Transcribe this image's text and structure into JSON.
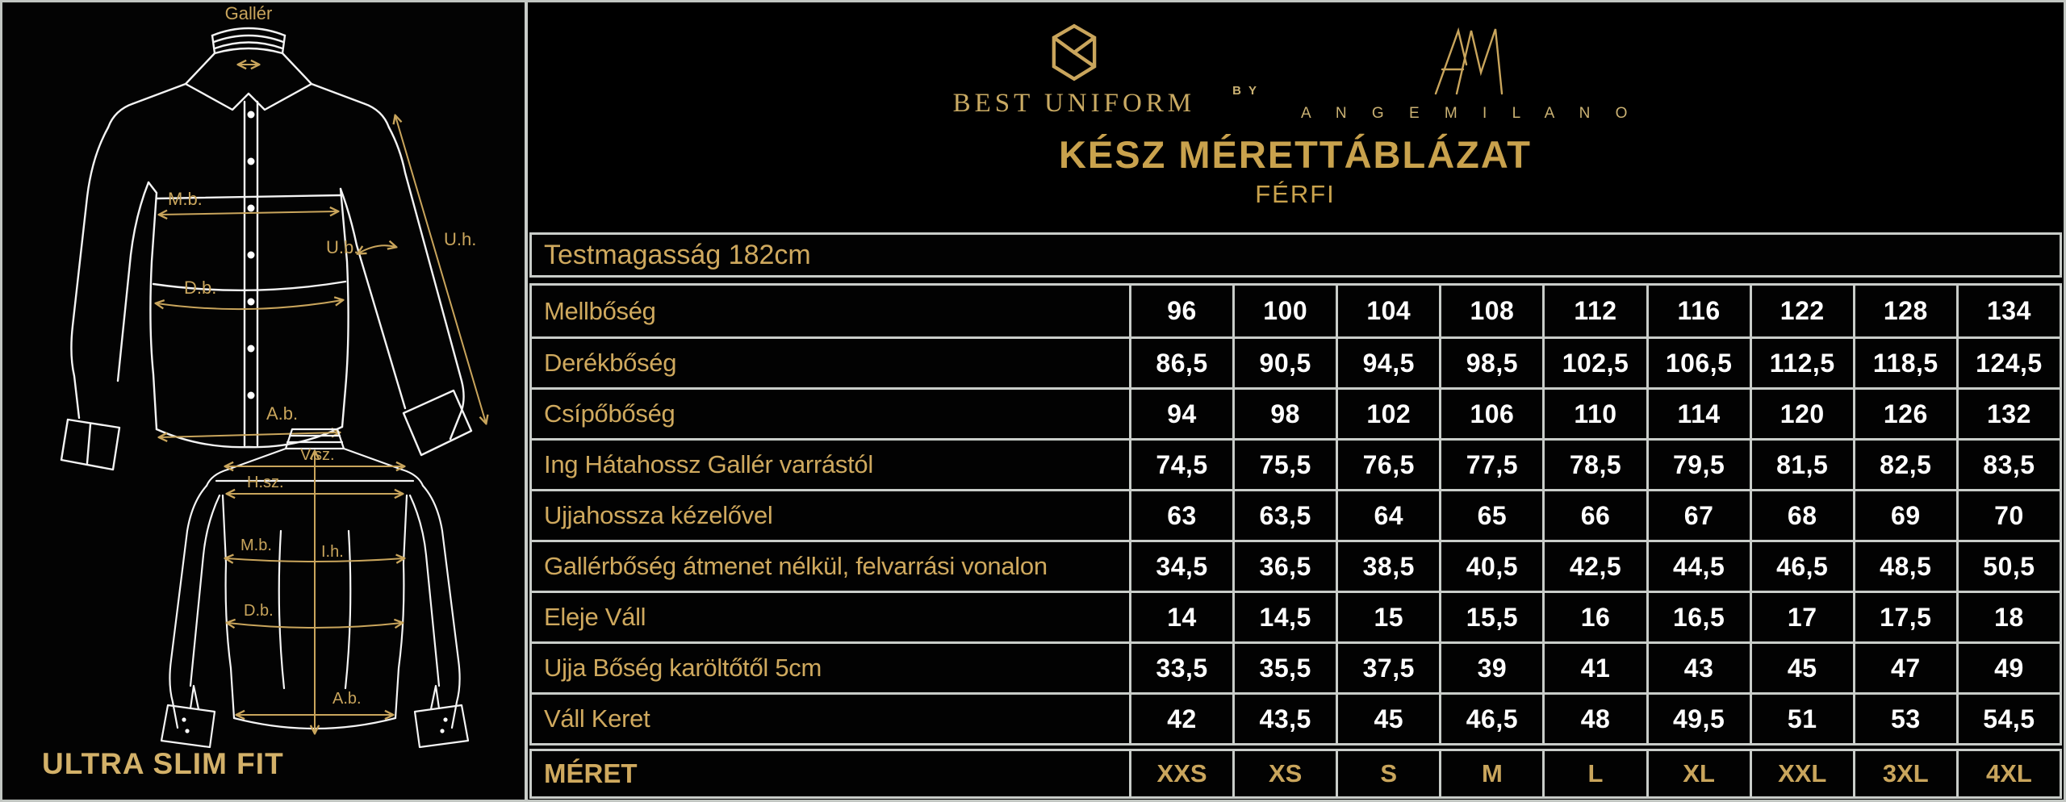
{
  "brand": {
    "best_uniform": "BEST UNIFORM",
    "by": "BY",
    "ange_milano": "A N G E   M I L A N O"
  },
  "header": {
    "title": "KÉSZ MÉRETTÁBLÁZAT",
    "subtitle": "FÉRFI"
  },
  "left_panel": {
    "fit_label": "ULTRA SLIM FIT",
    "front_diagram": {
      "collar": "Gallér",
      "chest": "M.b.",
      "waist": "D.b.",
      "hem": "A.b.",
      "sleeve_width": "U.b.",
      "sleeve_length": "U.h."
    },
    "back_diagram": {
      "shoulder_width": "V.sz.",
      "back_width": "H.sz.",
      "chest": "M.b.",
      "back_length": "I.h.",
      "waist": "D.b.",
      "hem": "A.b."
    }
  },
  "table": {
    "height_note": "Testmagasság 182cm",
    "size_row_label": "MÉRET",
    "sizes": [
      "XXS",
      "XS",
      "S",
      "M",
      "L",
      "XL",
      "XXL",
      "3XL",
      "4XL"
    ],
    "rows": [
      {
        "label": "Mellbőség",
        "values": [
          "96",
          "100",
          "104",
          "108",
          "112",
          "116",
          "122",
          "128",
          "134"
        ]
      },
      {
        "label": "Derékbőség",
        "values": [
          "86,5",
          "90,5",
          "94,5",
          "98,5",
          "102,5",
          "106,5",
          "112,5",
          "118,5",
          "124,5"
        ]
      },
      {
        "label": "Csípőbőség",
        "values": [
          "94",
          "98",
          "102",
          "106",
          "110",
          "114",
          "120",
          "126",
          "132"
        ]
      },
      {
        "label": "Ing Hátahossz Gallér varrástól",
        "values": [
          "74,5",
          "75,5",
          "76,5",
          "77,5",
          "78,5",
          "79,5",
          "81,5",
          "82,5",
          "83,5"
        ]
      },
      {
        "label": "Ujjahossza kézelővel",
        "values": [
          "63",
          "63,5",
          "64",
          "65",
          "66",
          "67",
          "68",
          "69",
          "70"
        ]
      },
      {
        "label": "Gallérbőség átmenet nélkül, felvarrási vonalon",
        "values": [
          "34,5",
          "36,5",
          "38,5",
          "40,5",
          "42,5",
          "44,5",
          "46,5",
          "48,5",
          "50,5"
        ]
      },
      {
        "label": "Eleje Váll",
        "values": [
          "14",
          "14,5",
          "15",
          "15,5",
          "16",
          "16,5",
          "17",
          "17,5",
          "18"
        ]
      },
      {
        "label": "Ujja Bőség karöltőtől 5cm",
        "values": [
          "33,5",
          "35,5",
          "37,5",
          "39",
          "41",
          "43",
          "45",
          "47",
          "49"
        ]
      },
      {
        "label": "Váll Keret",
        "values": [
          "42",
          "43,5",
          "45",
          "46,5",
          "48",
          "49,5",
          "51",
          "53",
          "54,5"
        ]
      }
    ]
  },
  "colors": {
    "background": "#000000",
    "gold": "#c9a55c",
    "title_gold": "#c9a24d",
    "value_white": "#ffffff",
    "border_gray": "#c9cdc9"
  }
}
